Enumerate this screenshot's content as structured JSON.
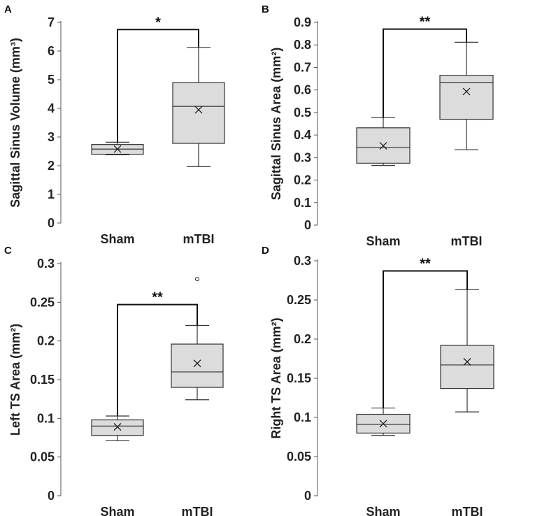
{
  "chart_data": [
    {
      "type": "boxplot",
      "panel": "A",
      "title": "",
      "xlabel": "",
      "ylabel": "Sagittal Sinus Volume (mm³)",
      "ylim": [
        0,
        7
      ],
      "yticks": [
        "0",
        "1",
        "2",
        "3",
        "4",
        "5",
        "6",
        "7"
      ],
      "tick_values": [
        0,
        1,
        2,
        3,
        4,
        5,
        6,
        7
      ],
      "categories": [
        "Sham",
        "mTBI"
      ],
      "boxes": [
        {
          "name": "Sham",
          "whisker_low": 2.38,
          "q1": 2.4,
          "median": 2.58,
          "q3": 2.74,
          "whisker_high": 2.82,
          "mean": 2.58,
          "outliers": []
        },
        {
          "name": "mTBI",
          "whisker_low": 1.97,
          "q1": 2.78,
          "median": 4.07,
          "q3": 4.9,
          "whisker_high": 6.13,
          "mean": 3.95,
          "outliers": []
        }
      ],
      "significance": {
        "label": "*",
        "from": "Sham",
        "to": "mTBI",
        "level": 6.75
      }
    },
    {
      "type": "boxplot",
      "panel": "B",
      "title": "",
      "xlabel": "",
      "ylabel": "Sagittal Sinus Area (mm²)",
      "ylim": [
        0,
        0.9
      ],
      "yticks": [
        "0",
        "0.1",
        "0.2",
        "0.3",
        "0.4",
        "0.5",
        "0.6",
        "0.7",
        "0.8",
        "0.9"
      ],
      "tick_values": [
        0,
        0.1,
        0.2,
        0.3,
        0.4,
        0.5,
        0.6,
        0.7,
        0.8,
        0.9
      ],
      "categories": [
        "Sham",
        "mTBI"
      ],
      "boxes": [
        {
          "name": "Sham",
          "whisker_low": 0.265,
          "q1": 0.275,
          "median": 0.345,
          "q3": 0.432,
          "whisker_high": 0.477,
          "mean": 0.352,
          "outliers": []
        },
        {
          "name": "mTBI",
          "whisker_low": 0.335,
          "q1": 0.47,
          "median": 0.632,
          "q3": 0.665,
          "whisker_high": 0.812,
          "mean": 0.593,
          "outliers": []
        }
      ],
      "significance": {
        "label": "**",
        "from": "Sham",
        "to": "mTBI",
        "level": 0.87
      }
    },
    {
      "type": "boxplot",
      "panel": "C",
      "title": "",
      "xlabel": "",
      "ylabel": "Left TS Area (mm²)",
      "ylim": [
        0,
        0.3
      ],
      "yticks": [
        "0",
        "0.05",
        "0.1",
        "0.15",
        "0.2",
        "0.25",
        "0.3"
      ],
      "tick_values": [
        0,
        0.05,
        0.1,
        0.15,
        0.2,
        0.25,
        0.3
      ],
      "categories": [
        "Sham",
        "mTBI"
      ],
      "boxes": [
        {
          "name": "Sham",
          "whisker_low": 0.071,
          "q1": 0.078,
          "median": 0.09,
          "q3": 0.098,
          "whisker_high": 0.103,
          "mean": 0.089,
          "outliers": []
        },
        {
          "name": "mTBI",
          "whisker_low": 0.124,
          "q1": 0.14,
          "median": 0.16,
          "q3": 0.196,
          "whisker_high": 0.22,
          "mean": 0.171,
          "outliers": [
            0.28
          ]
        }
      ],
      "significance": {
        "label": "**",
        "from": "Sham",
        "to": "mTBI",
        "level": 0.247
      }
    },
    {
      "type": "boxplot",
      "panel": "D",
      "title": "",
      "xlabel": "",
      "ylabel": "Right TS Area (mm²)",
      "ylim": [
        0,
        0.3
      ],
      "yticks": [
        "0",
        "0.05",
        "0.1",
        "0.15",
        "0.2",
        "0.25",
        "0.3"
      ],
      "tick_values": [
        0,
        0.05,
        0.1,
        0.15,
        0.2,
        0.25,
        0.3
      ],
      "categories": [
        "Sham",
        "mTBI"
      ],
      "boxes": [
        {
          "name": "Sham",
          "whisker_low": 0.077,
          "q1": 0.08,
          "median": 0.091,
          "q3": 0.104,
          "whisker_high": 0.112,
          "mean": 0.092,
          "outliers": []
        },
        {
          "name": "mTBI",
          "whisker_low": 0.107,
          "q1": 0.137,
          "median": 0.167,
          "q3": 0.192,
          "whisker_high": 0.263,
          "mean": 0.171,
          "outliers": []
        }
      ],
      "significance": {
        "label": "**",
        "from": "Sham",
        "to": "mTBI",
        "level": 0.287
      }
    }
  ]
}
